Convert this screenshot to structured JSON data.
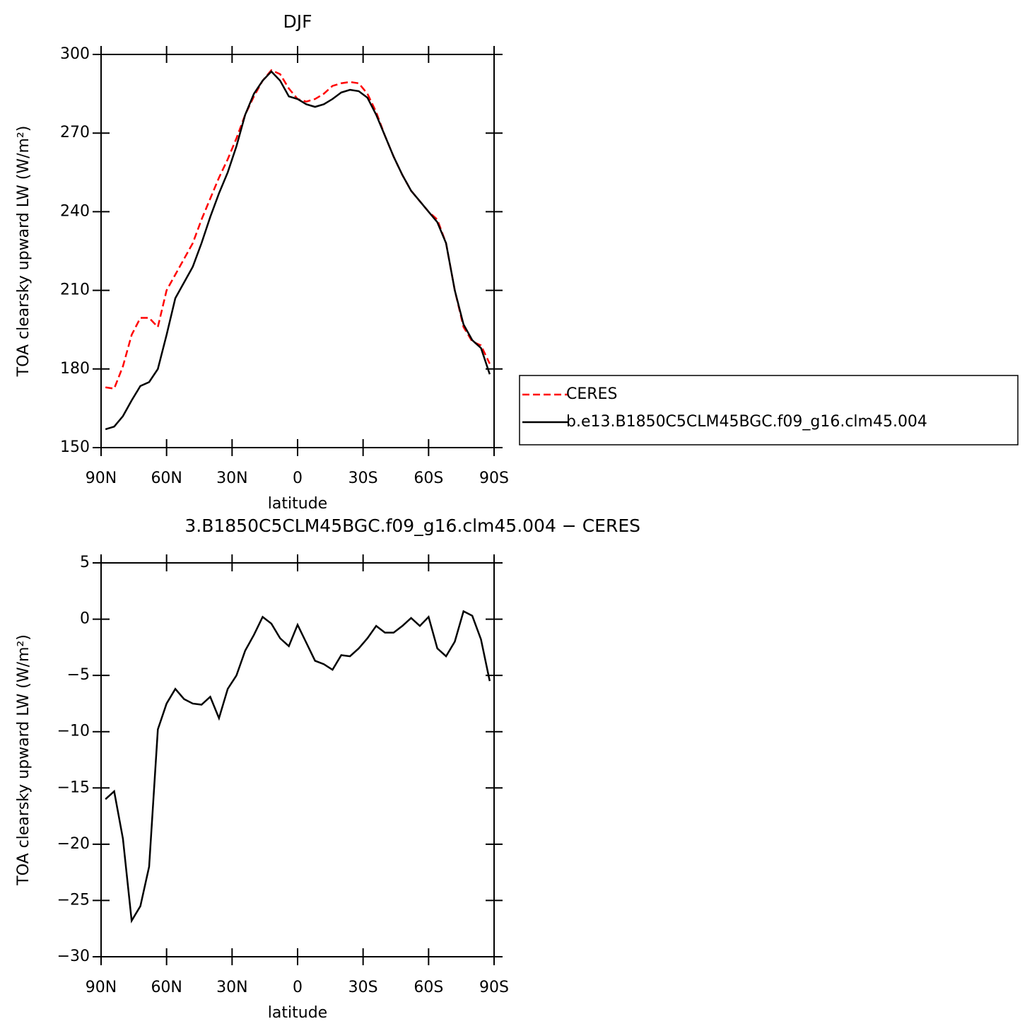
{
  "chart_data": [
    {
      "type": "line",
      "title": "DJF",
      "xlabel": "latitude",
      "ylabel": "TOA clearsky upward LW (W/m²)",
      "x": [
        88,
        84,
        80,
        76,
        72,
        68,
        64,
        60,
        56,
        52,
        48,
        44,
        40,
        36,
        32,
        28,
        24,
        20,
        16,
        12,
        8,
        4,
        0,
        -4,
        -8,
        -12,
        -16,
        -20,
        -24,
        -28,
        -32,
        -36,
        -40,
        -44,
        -48,
        -52,
        -56,
        -60,
        -64,
        -68,
        -72,
        -76,
        -80,
        -84,
        -88
      ],
      "series": [
        {
          "name": "CERES",
          "color": "#ff0000",
          "line_style": "dashed",
          "values": [
            173,
            172.5,
            181,
            193,
            199.5,
            199.5,
            196,
            210,
            216,
            222,
            228,
            237,
            245,
            253,
            260,
            268,
            277,
            284,
            290,
            294,
            292.5,
            287,
            283,
            282,
            283,
            285,
            288,
            289,
            289.5,
            289,
            285,
            278,
            269,
            261,
            254,
            248,
            244,
            240,
            237,
            228,
            210,
            196,
            190.5,
            189,
            182
          ]
        },
        {
          "name": "b.e13.B1850C5CLM45BGC.f09_g16.clm45.004",
          "color": "#000000",
          "line_style": "solid",
          "values": [
            157,
            158,
            162,
            168,
            173.5,
            175,
            180,
            193,
            207,
            213,
            219,
            228,
            238,
            247,
            255,
            265,
            277,
            285,
            290,
            293.5,
            290,
            284,
            283,
            281,
            280,
            281,
            283,
            285.5,
            286.5,
            286,
            283.5,
            277,
            269,
            261,
            254,
            248,
            244,
            240,
            236,
            228,
            210,
            197,
            191,
            188,
            178
          ]
        }
      ],
      "xlim": [
        90,
        -90
      ],
      "xticks": [
        {
          "value": 90,
          "label": "90N"
        },
        {
          "value": 60,
          "label": "60N"
        },
        {
          "value": 30,
          "label": "30N"
        },
        0,
        {
          "value": -30,
          "label": "30S"
        },
        {
          "value": -60,
          "label": "60S"
        },
        {
          "value": -90,
          "label": "90S"
        }
      ],
      "ylim": [
        150,
        300
      ],
      "yticks": [
        150,
        180,
        210,
        240,
        270,
        300
      ],
      "legend": "right"
    },
    {
      "type": "line",
      "title": "3.B1850C5CLM45BGC.f09_g16.clm45.004 − CERES",
      "xlabel": "latitude",
      "ylabel": "TOA clearsky upward LW (W/m²)",
      "x": [
        88,
        84,
        80,
        76,
        72,
        68,
        64,
        60,
        56,
        52,
        48,
        44,
        40,
        36,
        32,
        28,
        24,
        20,
        16,
        12,
        8,
        4,
        0,
        -4,
        -8,
        -12,
        -16,
        -20,
        -24,
        -28,
        -32,
        -36,
        -40,
        -44,
        -48,
        -52,
        -56,
        -60,
        -64,
        -68,
        -72,
        -76,
        -80,
        -84,
        -88
      ],
      "values": [
        -16,
        -15.3,
        -19.5,
        -26.8,
        -25.5,
        -22,
        -9.8,
        -7.5,
        -6.2,
        -7.1,
        -7.5,
        -7.6,
        -6.9,
        -8.8,
        -6.2,
        -5,
        -2.8,
        -1.4,
        0.2,
        -0.4,
        -1.7,
        -2.4,
        -0.5,
        -2.1,
        -3.7,
        -4,
        -4.5,
        -3.2,
        -3.3,
        -2.6,
        -1.7,
        -0.6,
        -1.2,
        -1.2,
        -0.6,
        0.1,
        -0.6,
        0.2,
        -2.6,
        -3.3,
        -2,
        0.7,
        0.3,
        -1.8,
        -5.5
      ],
      "color": "#000000",
      "xlim": [
        90,
        -90
      ],
      "xticks": [
        {
          "value": 90,
          "label": "90N"
        },
        {
          "value": 60,
          "label": "60N"
        },
        {
          "value": 30,
          "label": "30N"
        },
        0,
        {
          "value": -30,
          "label": "30S"
        },
        {
          "value": -60,
          "label": "60S"
        },
        {
          "value": -90,
          "label": "90S"
        }
      ],
      "ylim": [
        -30,
        5
      ],
      "yticks": [
        {
          "value": -30,
          "label": "−30"
        },
        {
          "value": -25,
          "label": "−25"
        },
        {
          "value": -20,
          "label": "−20"
        },
        {
          "value": -15,
          "label": "−15"
        },
        {
          "value": -10,
          "label": "−10"
        },
        {
          "value": -5,
          "label": "−5"
        },
        0,
        5
      ]
    }
  ]
}
